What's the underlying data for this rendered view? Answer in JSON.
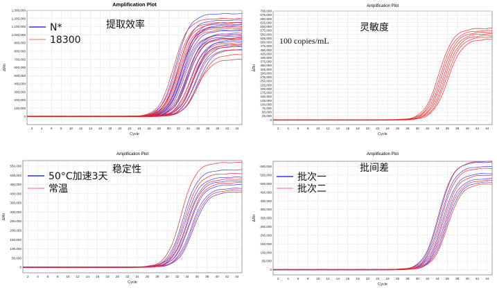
{
  "colors": {
    "blue": "#3333ee",
    "red": "#ee2222",
    "lightred": "#ff9a9a",
    "grid": "#e2e2e2",
    "axis": "#555555"
  },
  "chart_data": [
    {
      "type": "line",
      "title": "Amplification Plot",
      "annotation": "提取效率",
      "xlabel": "Cycle",
      "ylabel": "ΔRn",
      "ylim": [
        -100000,
        1300000
      ],
      "xlim": [
        1,
        45
      ],
      "x_ticks": [
        "2",
        "4",
        "6",
        "8",
        "10",
        "12",
        "14",
        "16",
        "18",
        "20",
        "22",
        "24",
        "26",
        "28",
        "30",
        "32",
        "34",
        "36",
        "38",
        "40",
        "42",
        "44"
      ],
      "y_ticks": [
        "0",
        "100,000",
        "200,000",
        "300,000",
        "400,000",
        "500,000",
        "600,000",
        "700,000",
        "800,000",
        "900,000",
        "1,000,000",
        "1,100,000",
        "1,200,000",
        "1,300,000"
      ],
      "legend_position": "top-left",
      "series": [
        {
          "name": "N*",
          "color": "#3333ee",
          "mids": [
            31.5,
            32,
            32.5,
            33,
            33.3,
            33.7,
            34,
            34.5,
            35,
            35.5,
            36,
            33,
            34,
            35.2,
            32.8
          ],
          "plateaus": [
            1260000,
            1180000,
            1100000,
            1050000,
            1000000,
            980000,
            960000,
            920000,
            880000,
            860000,
            820000,
            1120000,
            1020000,
            940000,
            1150000
          ]
        },
        {
          "name": "18300",
          "color": "#ee2222",
          "mids": [
            31,
            31.5,
            32,
            32.5,
            33,
            34,
            34.5,
            35,
            35.5,
            36,
            32.2,
            33.6,
            34.8,
            31.8,
            35.8
          ],
          "plateaus": [
            1200000,
            1150000,
            1100000,
            1060000,
            1000000,
            950000,
            900000,
            860000,
            820000,
            760000,
            1080000,
            960000,
            880000,
            1130000,
            700000
          ]
        }
      ]
    },
    {
      "type": "line",
      "title": "Amplification Plot",
      "annotation": "灵敏度",
      "subtitle": "100 copies/mL",
      "xlabel": "Cycle",
      "ylabel": "ΔRn",
      "ylim": [
        -30000,
        700000
      ],
      "xlim": [
        1,
        45
      ],
      "x_ticks": [
        "2",
        "4",
        "6",
        "8",
        "10",
        "12",
        "14",
        "16",
        "18",
        "20",
        "22",
        "24",
        "26",
        "28",
        "30",
        "32",
        "34",
        "36",
        "38",
        "40",
        "42",
        "44"
      ],
      "y_ticks": [
        "0",
        "25,000",
        "50,000",
        "75,000",
        "100,000",
        "125,000",
        "150,000",
        "175,000",
        "200,000",
        "225,000",
        "250,000",
        "275,000",
        "300,000",
        "325,000",
        "350,000",
        "375,000",
        "400,000",
        "425,000",
        "450,000",
        "475,000",
        "500,000",
        "525,000",
        "550,000",
        "575,000",
        "600,000",
        "625,000",
        "650,000",
        "675,000",
        "700,000"
      ],
      "series": [
        {
          "name": "",
          "color": "#ee2222",
          "mids": [
            34.3,
            34.6,
            34.9,
            35.2,
            35.5,
            35.8,
            36.1
          ],
          "plateaus": [
            590000,
            575000,
            565000,
            555000,
            545000,
            535000,
            520000
          ]
        }
      ]
    },
    {
      "type": "line",
      "title": "Amplification Plot",
      "annotation": "稳定性",
      "xlabel": "Cycle",
      "ylabel": "ΔRn",
      "ylim": [
        -30000,
        580000
      ],
      "xlim": [
        1,
        45
      ],
      "x_ticks": [
        "2",
        "4",
        "6",
        "8",
        "10",
        "12",
        "14",
        "16",
        "18",
        "20",
        "22",
        "24",
        "26",
        "28",
        "30",
        "32",
        "34",
        "36",
        "38",
        "40",
        "42",
        "44"
      ],
      "y_ticks": [
        "0",
        "50,000",
        "100,000",
        "150,000",
        "200,000",
        "250,000",
        "300,000",
        "350,000",
        "400,000",
        "450,000",
        "500,000",
        "550,000"
      ],
      "legend_position": "top-left",
      "series": [
        {
          "name": "50°C加速3天",
          "color": "#3333ee",
          "mids": [
            33.2,
            33.6,
            34,
            34.4,
            34.8,
            35.2
          ],
          "plateaus": [
            530000,
            490000,
            470000,
            450000,
            430000,
            410000
          ]
        },
        {
          "name": "常温",
          "color": "#ee2222",
          "mids": [
            32.8,
            33.4,
            33.9,
            34.3,
            35
          ],
          "plateaus": [
            570000,
            510000,
            480000,
            460000,
            420000
          ]
        }
      ]
    },
    {
      "type": "line",
      "title": "Amplification Plot",
      "annotation": "批间差",
      "xlabel": "Cycle",
      "ylabel": "ΔRn",
      "ylim": [
        -30000,
        630000
      ],
      "xlim": [
        1,
        45
      ],
      "x_ticks": [
        "2",
        "4",
        "6",
        "8",
        "10",
        "12",
        "14",
        "16",
        "18",
        "20",
        "22",
        "24",
        "26",
        "28",
        "30",
        "32",
        "34",
        "36",
        "38",
        "40",
        "42",
        "44"
      ],
      "y_ticks": [
        "0",
        "50,000",
        "100,000",
        "150,000",
        "200,000",
        "250,000",
        "300,000",
        "350,000",
        "400,000",
        "450,000",
        "500,000",
        "550,000",
        "600,000"
      ],
      "legend_position": "top-left",
      "series": [
        {
          "name": "批次一",
          "color": "#3333ee",
          "mids": [
            34.2,
            34.6,
            35,
            35.4,
            35.8
          ],
          "plateaus": [
            625000,
            600000,
            560000,
            530000,
            510000
          ]
        },
        {
          "name": "批次二",
          "color": "#ee2222",
          "mids": [
            34.4,
            34.8,
            35.2,
            35.6,
            36
          ],
          "plateaus": [
            630000,
            590000,
            550000,
            520000,
            500000
          ]
        }
      ]
    }
  ]
}
